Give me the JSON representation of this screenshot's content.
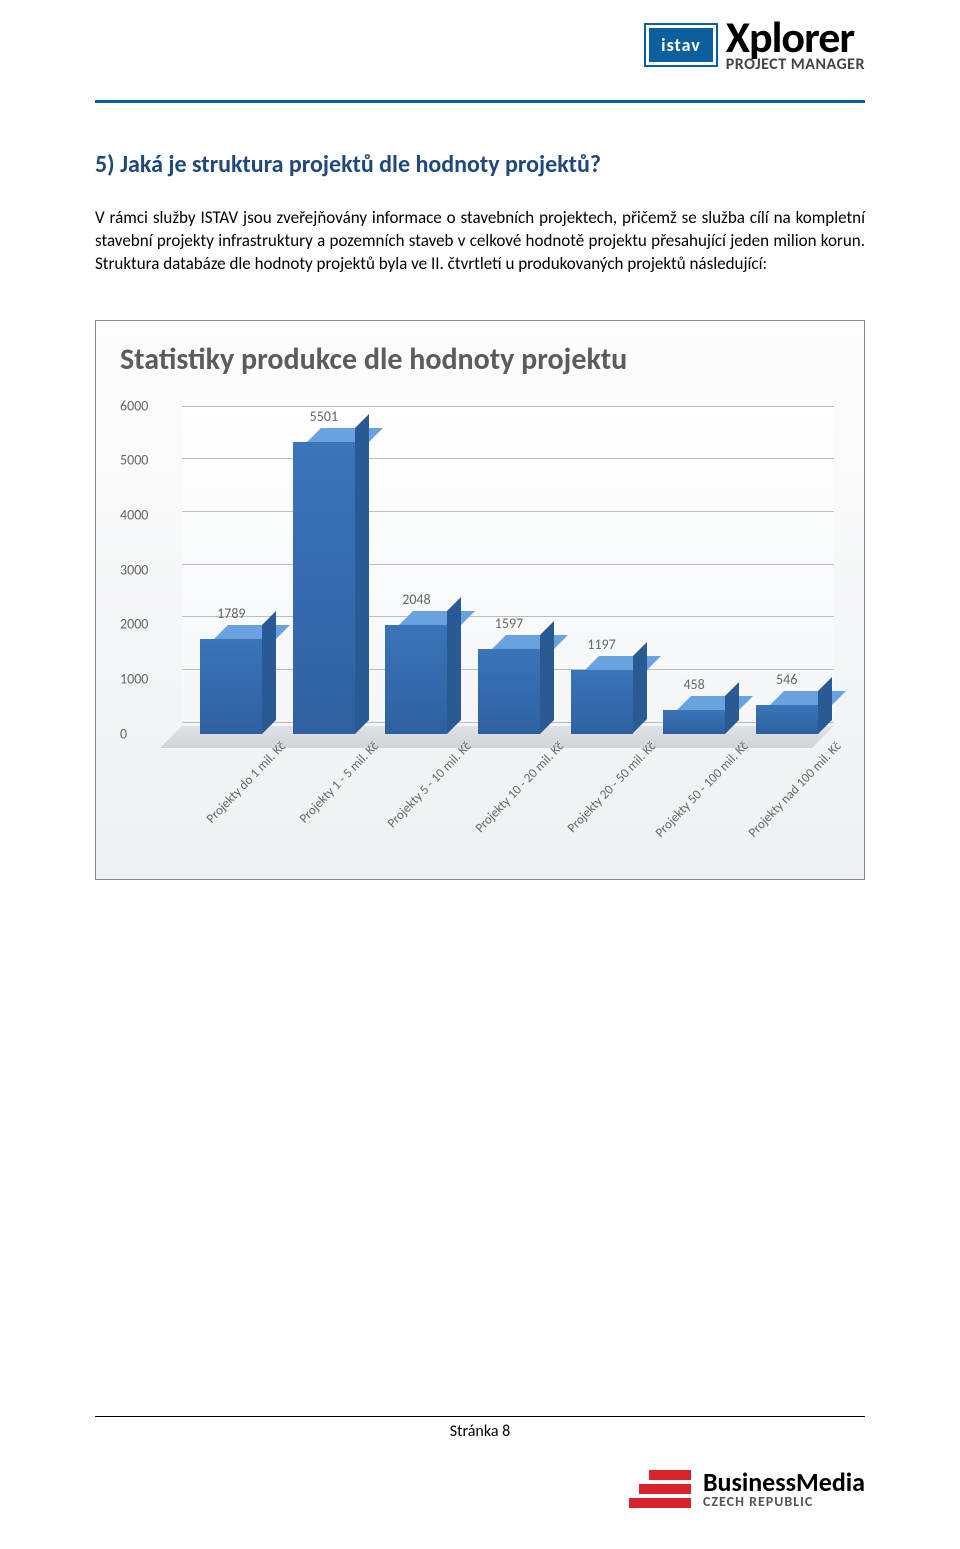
{
  "header": {
    "badge": "istav",
    "logo_main": "Xplorer",
    "logo_sub": "PROJECT MANAGER"
  },
  "section": {
    "title": "5) Jaká je struktura projektů dle hodnoty projektů?",
    "paragraph": "V rámci služby ISTAV jsou zveřejňovány informace o stavebních projektech, přičemž se služba cílí na kompletní stavební projekty infrastruktury a pozemních staveb v celkové hodnotě projektu přesahující jeden milion korun. Struktura databáze dle hodnoty projektů byla ve II. čtvrtletí u produkovaných projektů následující:"
  },
  "chart": {
    "type": "bar",
    "title": "Statistiky produkce dle hodnoty projektu",
    "ylim": [
      0,
      6000
    ],
    "ytick_step": 1000,
    "yticks": [
      "0",
      "1000",
      "2000",
      "3000",
      "4000",
      "5000",
      "6000"
    ],
    "categories": [
      "Projekty do 1 mil. Kč",
      "Projekty 1 - 5 mil. Kč",
      "Projekty 5 - 10 mil. Kč",
      "Projekty 10 - 20 mil. Kč",
      "Projekty 20 - 50 mil. Kč",
      "Projekty 50 - 100 mil. Kč",
      "Projekty nad 100 mil. Kč"
    ],
    "values": [
      1789,
      5501,
      2048,
      1597,
      1197,
      458,
      546
    ],
    "bar_front_color": "#3b74b9",
    "bar_top_color": "#6aa2df",
    "bar_side_color": "#2a5a94",
    "grid_color": "#bcbcbc",
    "background_gradient_top": "#fdfdfd",
    "background_gradient_bottom": "#eef0f2",
    "title_color": "#5c5c5c",
    "title_fontsize": 30,
    "label_fontsize": 14,
    "axis_label_fontsize": 13,
    "text_color": "#666666"
  },
  "footer": {
    "page_label": "Stránka 8",
    "logo_title": "BusinessMedia",
    "logo_sub": "CZECH REPUBLIC",
    "bar_color": "#d9232d"
  }
}
